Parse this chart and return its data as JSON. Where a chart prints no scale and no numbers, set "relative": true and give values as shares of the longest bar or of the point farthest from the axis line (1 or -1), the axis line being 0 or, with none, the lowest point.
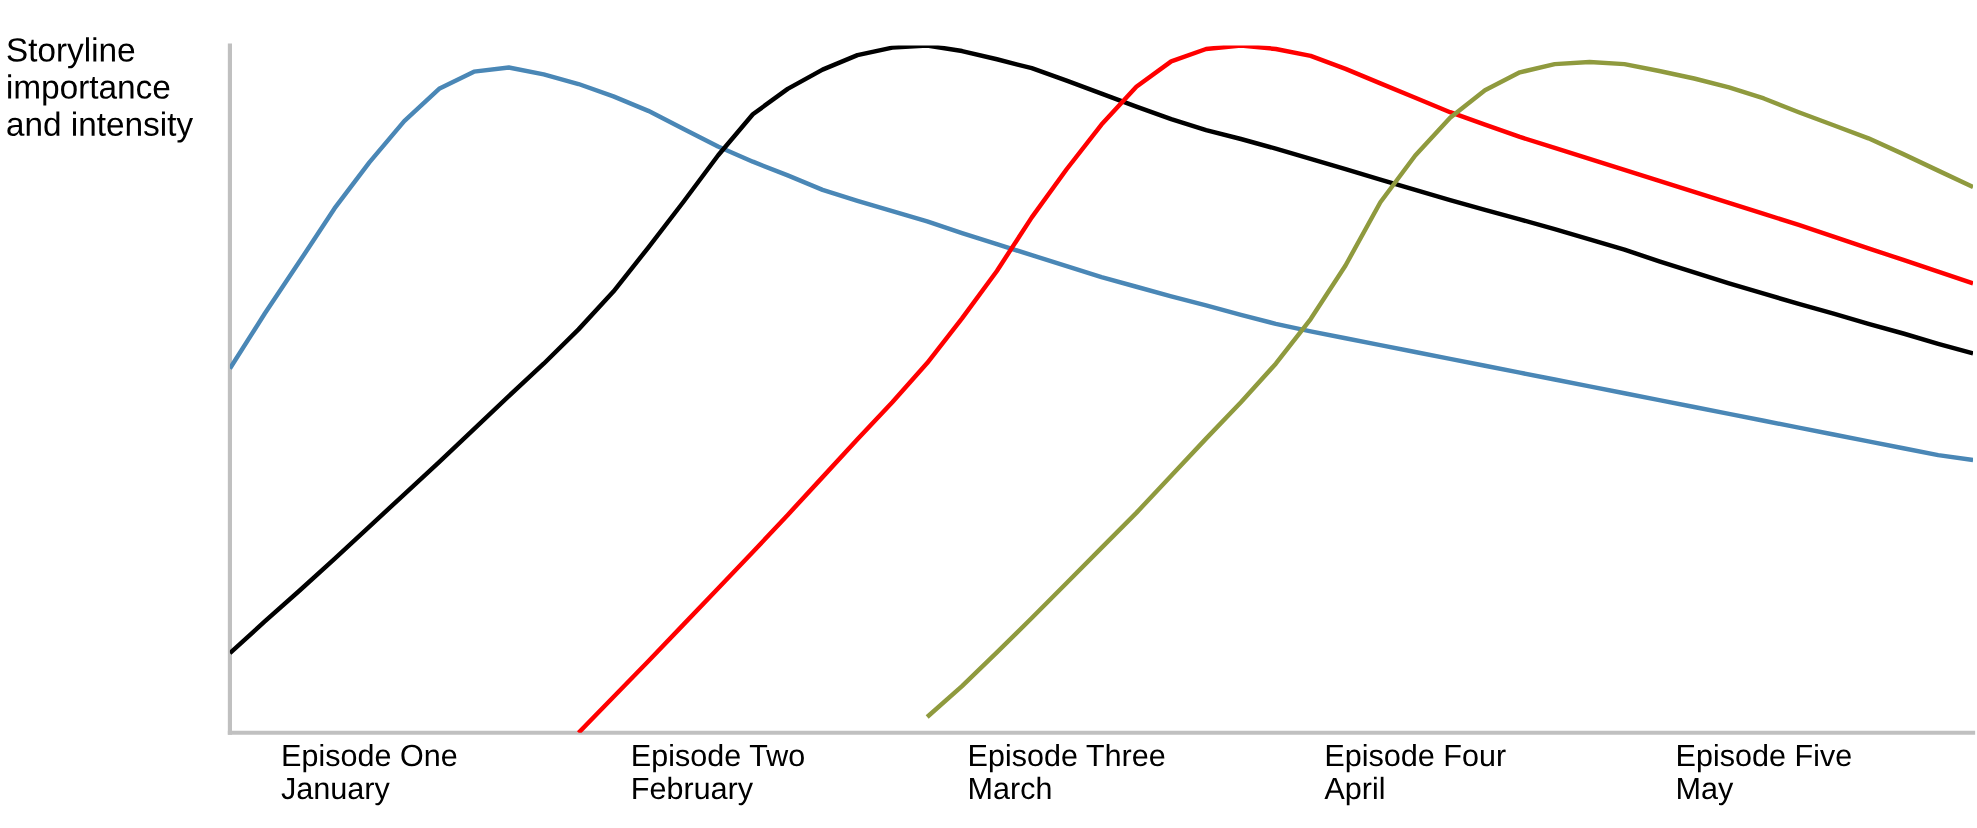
{
  "chart_data": {
    "type": "line",
    "relative": true,
    "ylabel": "Storyline\nimportance\nand intensity",
    "categories": [
      null,
      null,
      null,
      null,
      "Episode One\nJanuary",
      null,
      null,
      null,
      null,
      null,
      null,
      null,
      null,
      null,
      "Episode Two\nFebruary",
      null,
      null,
      null,
      null,
      null,
      null,
      null,
      null,
      null,
      "Episode Three\nMarch",
      null,
      null,
      null,
      null,
      null,
      null,
      null,
      null,
      null,
      "Episode Four\nApril",
      null,
      null,
      null,
      null,
      null,
      null,
      null,
      null,
      null,
      "Episode Five\nMay",
      null,
      null,
      null,
      null,
      null,
      null
    ],
    "tick_labels": "x",
    "legend": false,
    "marker": "none",
    "line_style": "solid",
    "series": [
      {
        "color": "#4a87b6",
        "values": [
          0.53,
          0.61,
          0.686,
          0.763,
          0.83,
          0.89,
          0.937,
          0.962,
          0.968,
          0.958,
          0.944,
          0.926,
          0.905,
          0.879,
          0.853,
          0.831,
          0.811,
          0.79,
          0.774,
          0.759,
          0.744,
          0.727,
          0.711,
          0.695,
          0.679,
          0.663,
          0.649,
          0.635,
          0.622,
          0.608,
          0.595,
          0.584,
          0.574,
          0.564,
          0.554,
          0.544,
          0.534,
          0.524,
          0.514,
          0.504,
          0.494,
          0.484,
          0.474,
          0.464,
          0.454,
          0.444,
          0.434,
          0.424,
          0.414,
          0.404,
          0.397
        ]
      },
      {
        "color": "#000000",
        "values": [
          0.116,
          0.162,
          0.207,
          0.253,
          0.3,
          0.347,
          0.394,
          0.442,
          0.49,
          0.537,
          0.587,
          0.642,
          0.706,
          0.772,
          0.84,
          0.9,
          0.937,
          0.965,
          0.986,
          0.997,
          1.0,
          0.992,
          0.98,
          0.967,
          0.949,
          0.93,
          0.911,
          0.893,
          0.877,
          0.864,
          0.85,
          0.835,
          0.82,
          0.805,
          0.79,
          0.775,
          0.761,
          0.747,
          0.733,
          0.718,
          0.703,
          0.686,
          0.67,
          0.654,
          0.639,
          0.624,
          0.61,
          0.595,
          0.581,
          0.566,
          0.552
        ]
      },
      {
        "color": "#ff0000",
        "values": [
          null,
          null,
          null,
          null,
          null,
          null,
          null,
          null,
          null,
          null,
          0,
          0.052,
          0.104,
          0.157,
          0.21,
          0.263,
          0.317,
          0.372,
          0.427,
          0.481,
          0.538,
          0.603,
          0.672,
          0.75,
          0.82,
          0.885,
          0.94,
          0.977,
          0.995,
          1.0,
          0.995,
          0.985,
          0.966,
          0.945,
          0.924,
          0.903,
          0.885,
          0.867,
          0.851,
          0.835,
          0.819,
          0.803,
          0.787,
          0.771,
          0.755,
          0.739,
          0.722,
          0.705,
          0.688,
          0.671,
          0.654
        ]
      },
      {
        "color": "#8f9a3e",
        "values": [
          null,
          null,
          null,
          null,
          null,
          null,
          null,
          null,
          null,
          null,
          null,
          null,
          null,
          null,
          null,
          null,
          null,
          null,
          null,
          null,
          0.023,
          0.068,
          0.117,
          0.167,
          0.218,
          0.269,
          0.32,
          0.374,
          0.428,
          0.481,
          0.537,
          0.602,
          0.68,
          0.772,
          0.84,
          0.895,
          0.935,
          0.961,
          0.973,
          0.976,
          0.973,
          0.963,
          0.952,
          0.939,
          0.923,
          0.903,
          0.884,
          0.865,
          0.842,
          0.818,
          0.794
        ]
      }
    ]
  }
}
